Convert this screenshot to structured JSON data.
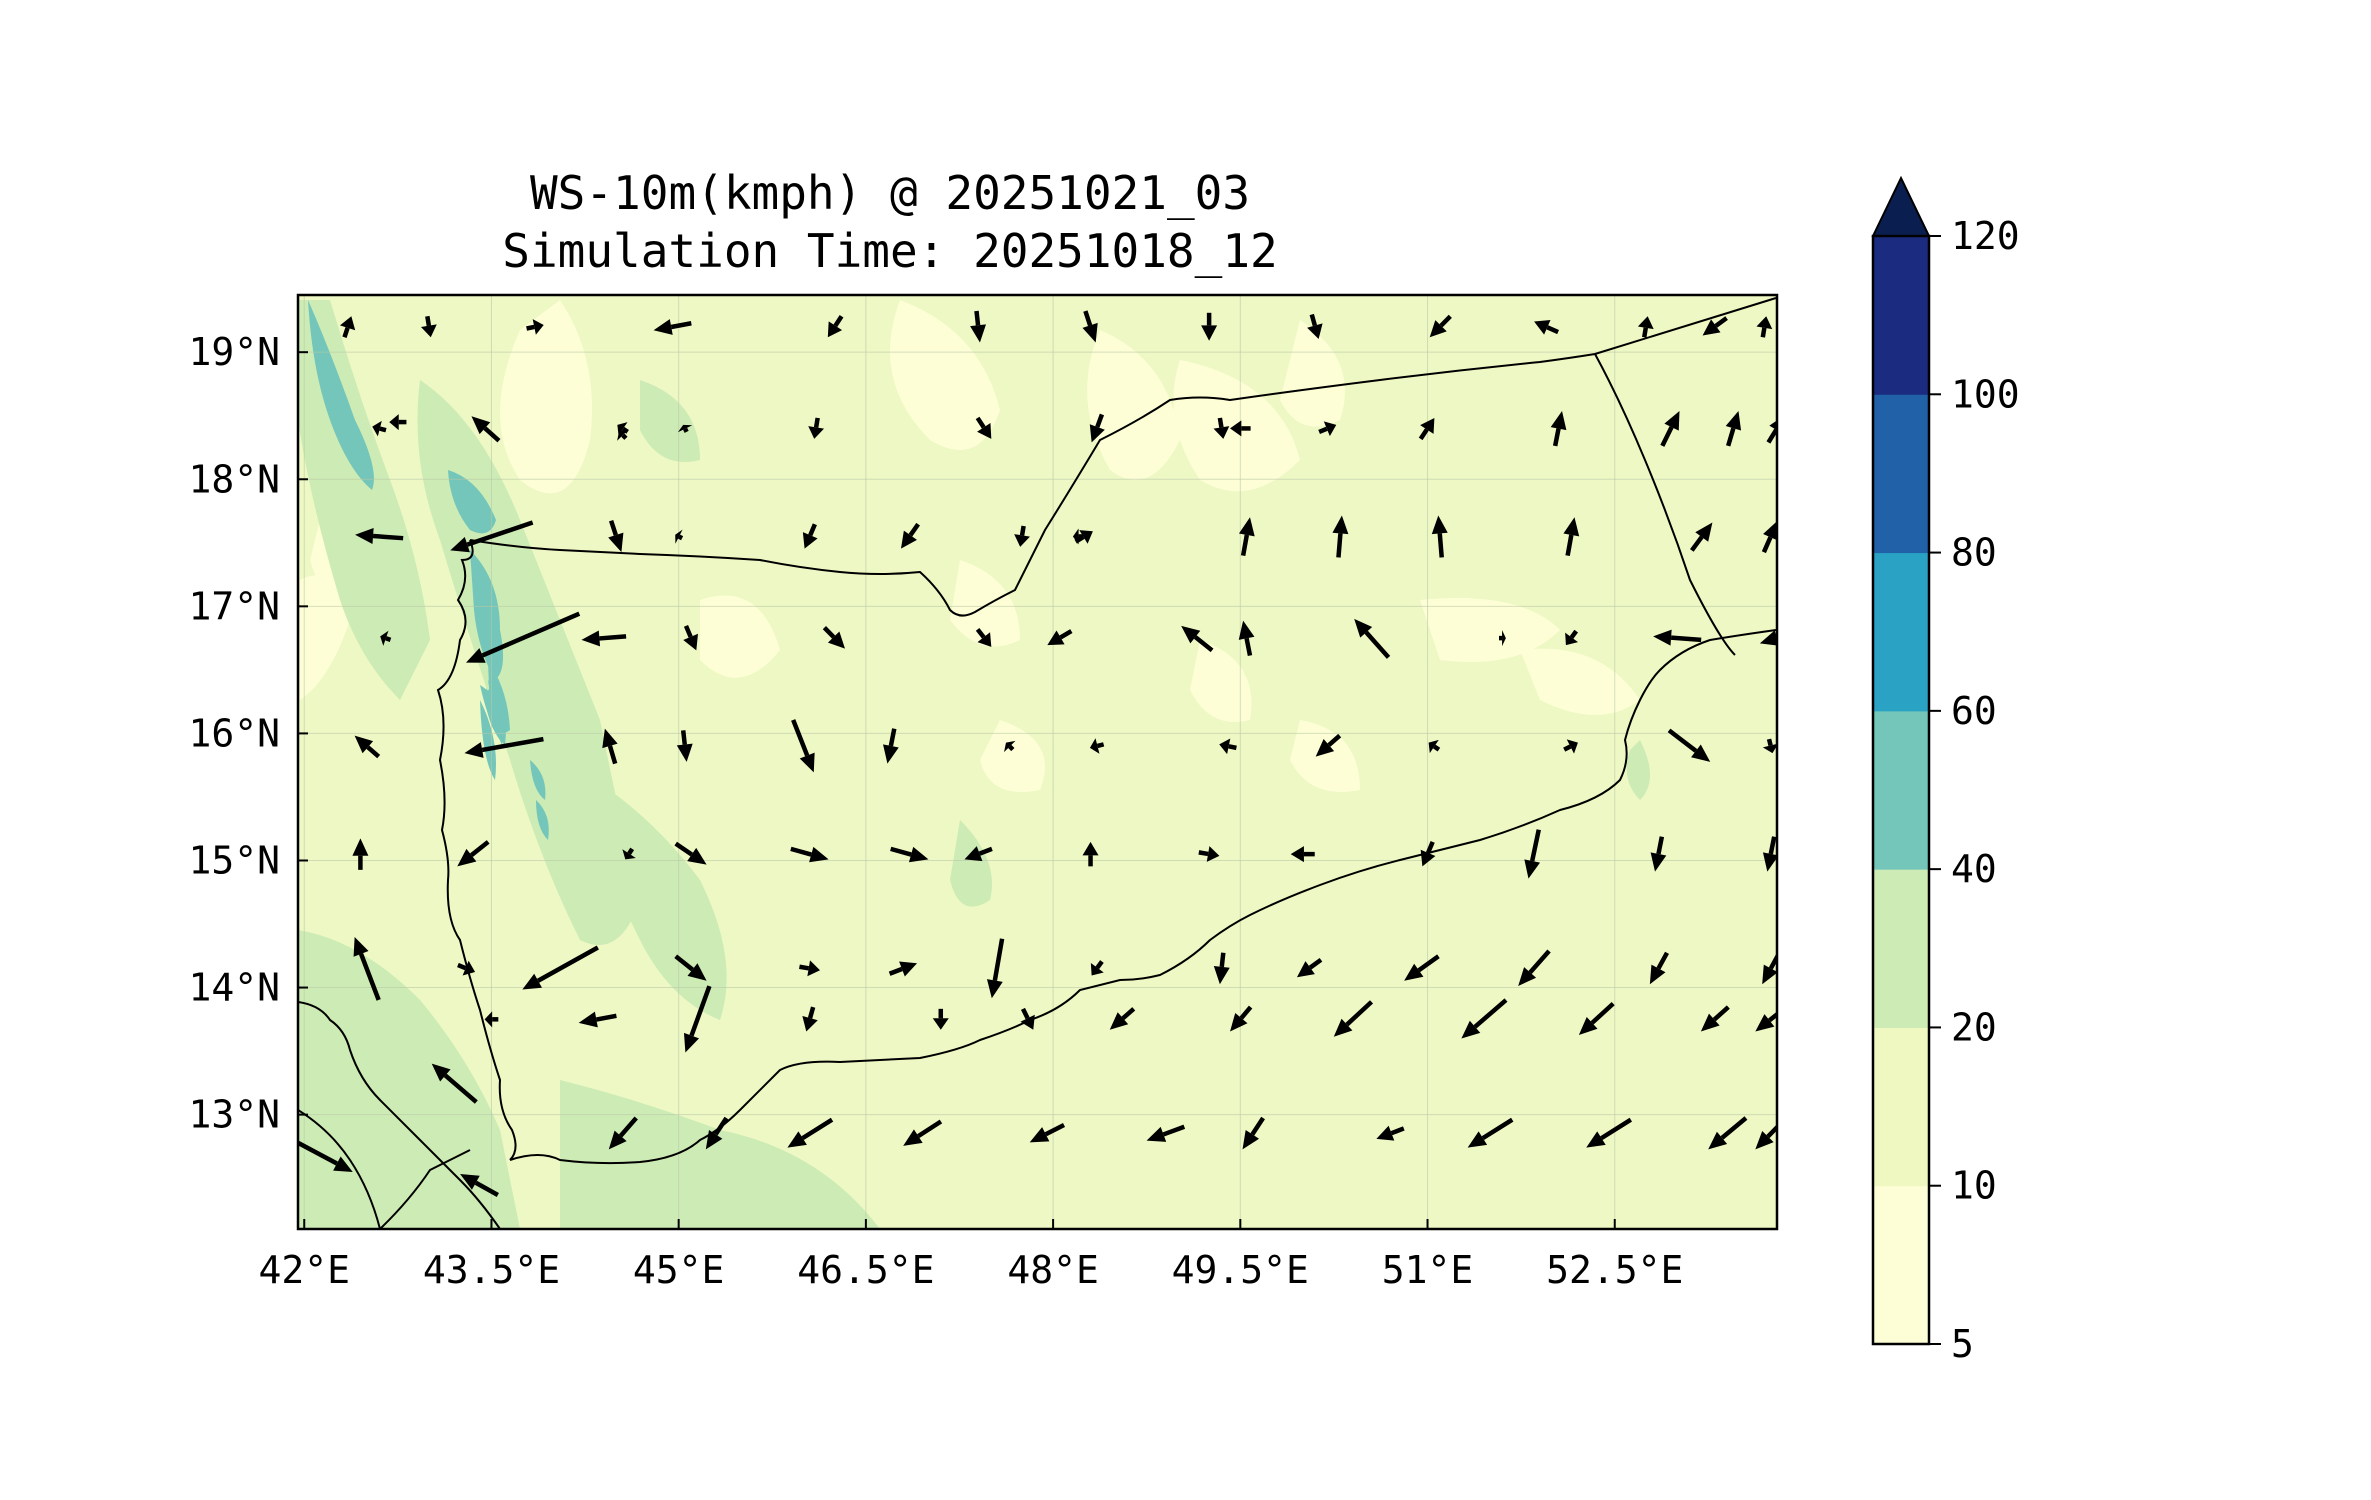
{
  "title": {
    "line1": "WS-10m(kmph) @ 20251021_03",
    "line2": "Simulation Time: 20251018_12"
  },
  "map": {
    "lon_range": [
      41.95,
      53.8
    ],
    "lat_range": [
      12.1,
      19.45
    ],
    "lon_ticks": [
      42,
      43.5,
      45,
      46.5,
      48,
      49.5,
      51,
      52.5
    ],
    "lon_tick_labels": [
      "42°E",
      "43.5°E",
      "45°E",
      "46.5°E",
      "48°E",
      "49.5°E",
      "51°E",
      "52.5°E"
    ],
    "lat_ticks": [
      13,
      14,
      15,
      16,
      17,
      18,
      19
    ],
    "lat_tick_labels": [
      "13°N",
      "14°N",
      "15°N",
      "16°N",
      "17°N",
      "18°N",
      "19°N"
    ],
    "gridlines": true,
    "background_color": "#eef8c4"
  },
  "colorbar": {
    "levels": [
      5,
      10,
      20,
      40,
      60,
      80,
      100,
      120
    ],
    "tick_labels": [
      "5",
      "10",
      "20",
      "40",
      "60",
      "80",
      "100",
      "120"
    ],
    "colors": [
      "#fdfed6",
      "#eff8c1",
      "#cdebb5",
      "#73c6b9",
      "#2aa2c4",
      "#2161a8",
      "#1b2b80"
    ],
    "extend_color": "#0a1f4f",
    "extend": "max"
  },
  "wind_vectors": [
    [
      42.35,
      19.2,
      0.1,
      0.3
    ],
    [
      43.0,
      19.2,
      0.05,
      -0.3
    ],
    [
      43.85,
      19.2,
      0.25,
      0.05
    ],
    [
      44.95,
      19.2,
      -0.55,
      -0.1
    ],
    [
      46.25,
      19.2,
      -0.2,
      -0.3
    ],
    [
      47.4,
      19.2,
      0.05,
      -0.45
    ],
    [
      48.3,
      19.2,
      0.15,
      -0.45
    ],
    [
      49.25,
      19.2,
      0.0,
      -0.4
    ],
    [
      50.1,
      19.2,
      0.1,
      -0.35
    ],
    [
      51.1,
      19.2,
      -0.3,
      -0.3
    ],
    [
      51.95,
      19.2,
      -0.35,
      0.15
    ],
    [
      52.75,
      19.2,
      0.05,
      0.3
    ],
    [
      53.3,
      19.2,
      -0.35,
      -0.25
    ],
    [
      53.7,
      19.2,
      0.05,
      0.3
    ],
    [
      42.6,
      18.4,
      -0.2,
      0.05
    ],
    [
      43.45,
      18.4,
      -0.4,
      0.35
    ],
    [
      44.55,
      18.4,
      -0.15,
      0.1
    ],
    [
      45.05,
      18.4,
      -0.05,
      0.1
    ],
    [
      46.1,
      18.4,
      -0.05,
      -0.3
    ],
    [
      47.45,
      18.4,
      0.2,
      -0.3
    ],
    [
      48.35,
      18.4,
      -0.15,
      -0.4
    ],
    [
      49.35,
      18.4,
      0.05,
      -0.3
    ],
    [
      50.2,
      18.4,
      0.25,
      0.1
    ],
    [
      51.0,
      18.4,
      0.2,
      0.3
    ],
    [
      52.05,
      18.4,
      0.1,
      0.5
    ],
    [
      52.95,
      18.4,
      0.25,
      0.5
    ],
    [
      53.45,
      18.4,
      0.15,
      0.5
    ],
    [
      53.8,
      18.4,
      0.25,
      0.4
    ],
    [
      42.6,
      17.55,
      -0.7,
      0.05
    ],
    [
      43.5,
      17.55,
      -1.2,
      -0.4
    ],
    [
      44.5,
      17.55,
      0.15,
      -0.45
    ],
    [
      45.0,
      17.55,
      -0.1,
      0.05
    ],
    [
      46.05,
      17.55,
      -0.15,
      -0.35
    ],
    [
      46.85,
      17.55,
      -0.25,
      -0.35
    ],
    [
      47.75,
      17.55,
      -0.05,
      -0.3
    ],
    [
      48.25,
      17.55,
      0.25,
      0.15
    ],
    [
      49.55,
      17.55,
      0.1,
      0.55
    ],
    [
      50.3,
      17.55,
      0.05,
      0.6
    ],
    [
      51.1,
      17.55,
      -0.05,
      0.6
    ],
    [
      52.15,
      17.55,
      0.1,
      0.55
    ],
    [
      53.2,
      17.55,
      0.3,
      0.4
    ],
    [
      53.75,
      17.55,
      0.2,
      0.45
    ],
    [
      42.65,
      16.75,
      -0.15,
      0.05
    ],
    [
      43.75,
      16.75,
      -1.65,
      -0.7
    ],
    [
      44.4,
      16.75,
      -0.65,
      -0.05
    ],
    [
      45.1,
      16.75,
      0.15,
      -0.35
    ],
    [
      46.25,
      16.75,
      0.3,
      -0.3
    ],
    [
      47.45,
      16.75,
      0.2,
      -0.25
    ],
    [
      48.05,
      16.75,
      -0.35,
      -0.2
    ],
    [
      49.15,
      16.75,
      -0.45,
      0.35
    ],
    [
      49.55,
      16.75,
      -0.1,
      0.5
    ],
    [
      50.55,
      16.75,
      -0.5,
      0.55
    ],
    [
      51.6,
      16.75,
      0.1,
      0.0
    ],
    [
      52.15,
      16.75,
      -0.15,
      -0.2
    ],
    [
      53.0,
      16.75,
      -0.7,
      0.05
    ],
    [
      53.8,
      16.75,
      -0.5,
      -0.15
    ],
    [
      42.5,
      15.9,
      -0.35,
      0.3
    ],
    [
      43.6,
      15.9,
      -1.15,
      -0.2
    ],
    [
      44.45,
      15.9,
      -0.15,
      0.5
    ],
    [
      45.05,
      15.9,
      0.05,
      -0.45
    ],
    [
      46.0,
      15.9,
      0.3,
      -0.75
    ],
    [
      46.7,
      15.9,
      -0.1,
      -0.5
    ],
    [
      47.65,
      15.9,
      -0.1,
      0.1
    ],
    [
      48.35,
      15.9,
      -0.2,
      -0.05
    ],
    [
      49.4,
      15.9,
      -0.25,
      0.05
    ],
    [
      50.2,
      15.9,
      -0.35,
      -0.3
    ],
    [
      51.05,
      15.9,
      -0.15,
      0.1
    ],
    [
      52.15,
      15.9,
      0.2,
      0.1
    ],
    [
      53.1,
      15.9,
      0.6,
      -0.45
    ],
    [
      53.75,
      15.9,
      0.05,
      -0.2
    ],
    [
      42.45,
      15.05,
      0.0,
      0.45
    ],
    [
      43.35,
      15.05,
      -0.45,
      -0.35
    ],
    [
      44.6,
      15.05,
      -0.1,
      -0.15
    ],
    [
      45.1,
      15.05,
      0.45,
      -0.3
    ],
    [
      46.05,
      15.05,
      0.55,
      -0.15
    ],
    [
      46.85,
      15.05,
      0.55,
      -0.15
    ],
    [
      47.4,
      15.05,
      -0.4,
      -0.15
    ],
    [
      48.3,
      15.05,
      0.0,
      0.35
    ],
    [
      49.25,
      15.05,
      0.3,
      -0.05
    ],
    [
      50.0,
      15.05,
      -0.35,
      0.0
    ],
    [
      51.0,
      15.05,
      -0.15,
      -0.35
    ],
    [
      51.85,
      15.05,
      -0.15,
      -0.7
    ],
    [
      52.85,
      15.05,
      -0.1,
      -0.5
    ],
    [
      53.75,
      15.05,
      -0.1,
      -0.5
    ],
    [
      42.5,
      14.15,
      -0.35,
      0.9
    ],
    [
      43.3,
      14.15,
      0.25,
      -0.1
    ],
    [
      44.05,
      14.15,
      -1.1,
      -0.6
    ],
    [
      45.1,
      14.15,
      0.45,
      -0.35
    ],
    [
      46.05,
      14.15,
      0.3,
      -0.05
    ],
    [
      46.8,
      14.15,
      0.4,
      0.15
    ],
    [
      47.55,
      14.15,
      -0.15,
      -0.85
    ],
    [
      48.35,
      14.15,
      -0.15,
      -0.2
    ],
    [
      49.35,
      14.15,
      -0.05,
      -0.45
    ],
    [
      50.05,
      14.15,
      -0.35,
      -0.25
    ],
    [
      50.95,
      14.15,
      -0.5,
      -0.35
    ],
    [
      51.85,
      14.15,
      -0.45,
      -0.5
    ],
    [
      52.85,
      14.15,
      -0.25,
      -0.45
    ],
    [
      53.75,
      14.15,
      -0.25,
      -0.45
    ],
    [
      43.2,
      13.25,
      -0.65,
      0.55
    ],
    [
      43.5,
      13.75,
      -0.2,
      0.0
    ],
    [
      44.35,
      13.75,
      -0.55,
      -0.1
    ],
    [
      45.15,
      13.75,
      -0.35,
      -0.95
    ],
    [
      46.05,
      13.75,
      -0.1,
      -0.35
    ],
    [
      47.1,
      13.75,
      0.0,
      -0.3
    ],
    [
      47.8,
      13.75,
      0.15,
      -0.3
    ],
    [
      48.55,
      13.75,
      -0.35,
      -0.3
    ],
    [
      49.5,
      13.75,
      -0.3,
      -0.35
    ],
    [
      50.4,
      13.75,
      -0.55,
      -0.5
    ],
    [
      51.45,
      13.75,
      -0.65,
      -0.55
    ],
    [
      52.35,
      13.75,
      -0.5,
      -0.45
    ],
    [
      53.3,
      13.75,
      -0.4,
      -0.35
    ],
    [
      53.75,
      13.75,
      -0.45,
      -0.35
    ],
    [
      42.1,
      12.7,
      1.05,
      -0.55
    ],
    [
      43.4,
      12.45,
      -0.55,
      0.3
    ],
    [
      44.55,
      12.85,
      -0.4,
      -0.45
    ],
    [
      45.3,
      12.85,
      -0.3,
      -0.45
    ],
    [
      46.05,
      12.85,
      -0.65,
      -0.4
    ],
    [
      46.95,
      12.85,
      -0.55,
      -0.35
    ],
    [
      47.95,
      12.85,
      -0.5,
      -0.25
    ],
    [
      48.9,
      12.85,
      -0.55,
      -0.2
    ],
    [
      49.6,
      12.85,
      -0.3,
      -0.45
    ],
    [
      50.7,
      12.85,
      -0.4,
      -0.15
    ],
    [
      51.5,
      12.85,
      -0.65,
      -0.4
    ],
    [
      52.45,
      12.85,
      -0.65,
      -0.4
    ],
    [
      53.4,
      12.85,
      -0.55,
      -0.45
    ],
    [
      53.75,
      12.85,
      -0.45,
      -0.45
    ],
    [
      42.75,
      18.45,
      -0.25,
      0.0
    ],
    [
      44.55,
      18.35,
      -0.1,
      0.1
    ],
    [
      49.5,
      18.4,
      -0.3,
      0.0
    ],
    [
      48.2,
      17.55,
      -0.15,
      0.0
    ]
  ]
}
